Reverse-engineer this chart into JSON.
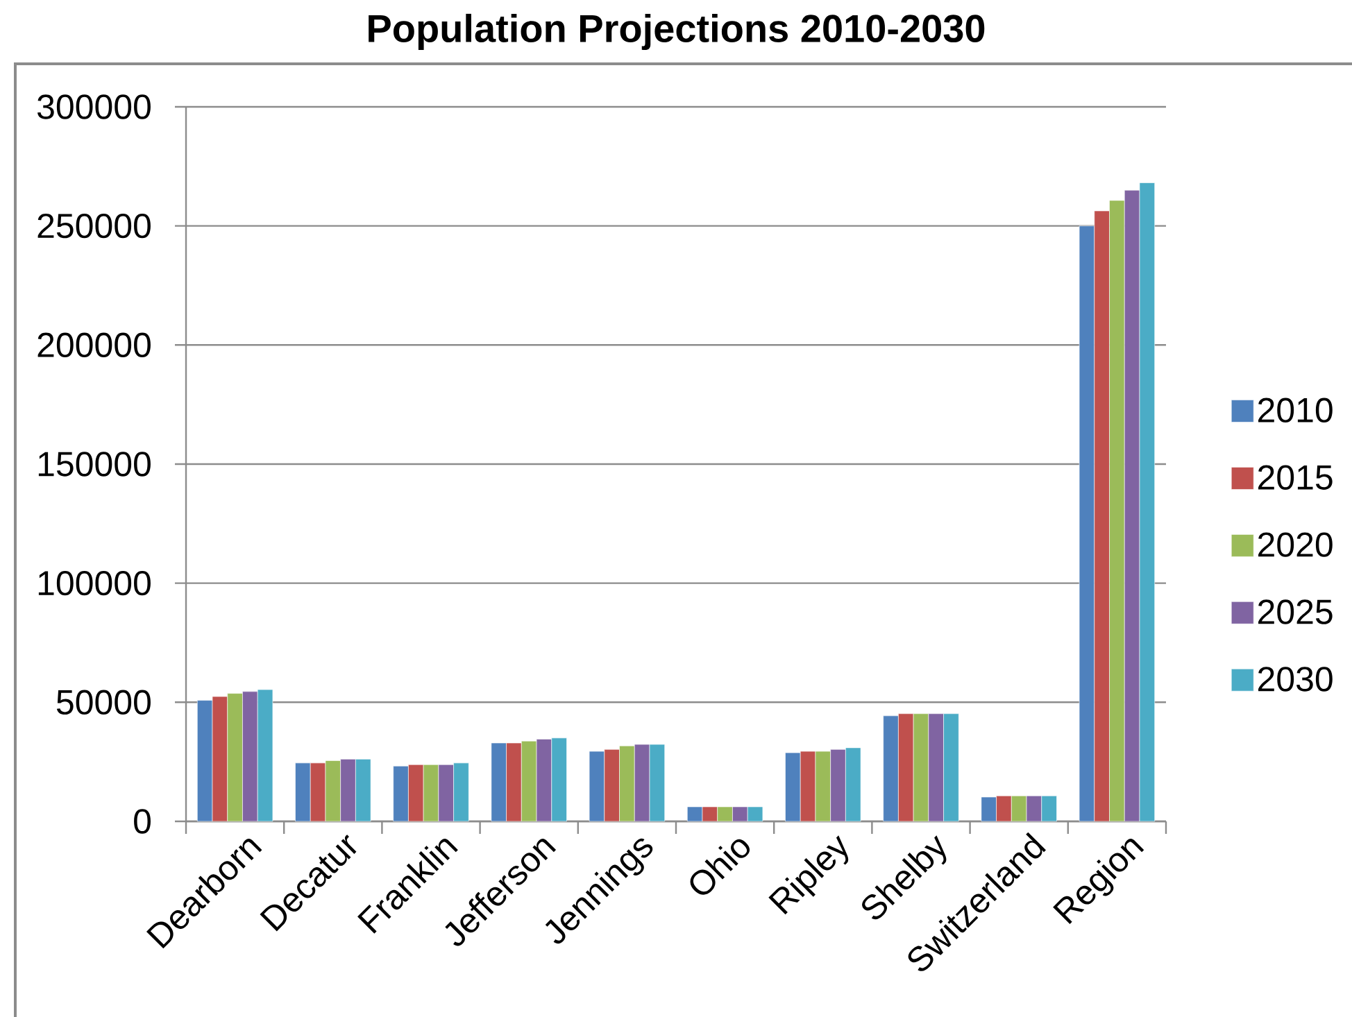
{
  "chart_data": {
    "type": "bar",
    "title": "Population Projections 2010-2030",
    "categories": [
      "Dearborn",
      "Decatur",
      "Franklin",
      "Jefferson",
      "Jennings",
      "Ohio",
      "Ripley",
      "Shelby",
      "Switzerland",
      "Region"
    ],
    "series": [
      {
        "name": "2010",
        "color": "#4f81bd",
        "values": [
          50800,
          24500,
          23200,
          32900,
          29400,
          6100,
          28800,
          44300,
          10200,
          250000
        ]
      },
      {
        "name": "2015",
        "color": "#c0504d",
        "values": [
          52400,
          24500,
          23800,
          32900,
          30200,
          6100,
          29400,
          45200,
          10700,
          256300
        ]
      },
      {
        "name": "2020",
        "color": "#9bbb59",
        "values": [
          53700,
          25500,
          23800,
          33700,
          31700,
          6100,
          29400,
          45200,
          10700,
          260700
        ]
      },
      {
        "name": "2025",
        "color": "#8064a2",
        "values": [
          54500,
          26100,
          23800,
          34500,
          32300,
          6100,
          30200,
          45200,
          10700,
          265000
        ]
      },
      {
        "name": "2030",
        "color": "#4bacc6",
        "values": [
          55300,
          26100,
          24500,
          35000,
          32300,
          6100,
          30900,
          45200,
          10700,
          268100
        ]
      }
    ],
    "ylim": [
      0,
      300000
    ],
    "yticks": [
      0,
      50000,
      100000,
      150000,
      200000,
      250000,
      300000
    ],
    "grid": "y",
    "legend": "right"
  }
}
